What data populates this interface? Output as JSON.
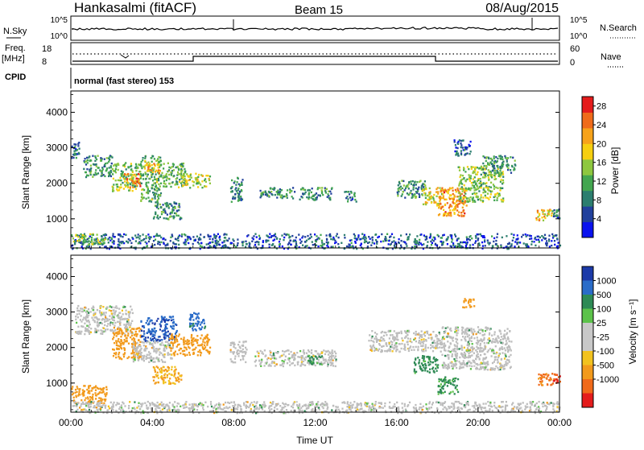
{
  "header": {
    "station": "Hankasalmi (fitACF)",
    "beam": "Beam 15",
    "date": "08/Aug/2015"
  },
  "summary_panel": {
    "nsky_label": "N.Sky",
    "nsearch_label": "N.Search",
    "nsky_axis_ticks": [
      "10^5",
      "10^0"
    ],
    "nsearch_axis_ticks": [
      "10^5",
      "10^0"
    ],
    "freq_label": "Freq.",
    "freq_unit": "[MHz]",
    "freq_ticks": [
      "18",
      "8"
    ],
    "nave_label": "Nave",
    "nave_ticks": [
      "60",
      "0"
    ],
    "cpid_label": "CPID",
    "cpid_text": "normal (fast stereo) 153"
  },
  "colors": {
    "power_scale": [
      "#0a12ee",
      "#21409c",
      "#2c7e6f",
      "#43a650",
      "#8ec73f",
      "#f6cf10",
      "#f6a21a",
      "#ef6b1a",
      "#e41c1c"
    ],
    "velocity_scale": [
      "#1c3aa8",
      "#2a6cc8",
      "#2e8a55",
      "#5cc24a",
      "#c8c8c8",
      "#c8c8c8",
      "#f2c21f",
      "#f29a1c",
      "#f06a1a",
      "#e41c1c"
    ],
    "ground_scatter": "#bdbdbd"
  },
  "chart_data": [
    {
      "type": "heatmap",
      "title": "",
      "xlabel": "Time UT",
      "ylabel": "Slant Range [km]",
      "x_ticks": [
        "00:00",
        "04:00",
        "08:00",
        "12:00",
        "16:00",
        "20:00",
        "00:00"
      ],
      "y_ticks": [
        "1000",
        "2000",
        "3000",
        "4000"
      ],
      "xlim_hours": [
        0,
        24
      ],
      "ylim_km": [
        180,
        4600
      ],
      "colorbar": {
        "label": "Power [dB]",
        "ticks": [
          "4",
          "8",
          "12",
          "16",
          "20",
          "24",
          "28"
        ],
        "range": [
          0,
          30
        ]
      },
      "regions": [
        {
          "t0": 0.0,
          "t1": 0.4,
          "r0": 2700,
          "r1": 3200,
          "value": 6
        },
        {
          "t0": 0.6,
          "t1": 2.0,
          "r0": 2200,
          "r1": 2800,
          "value": 10
        },
        {
          "t0": 2.0,
          "t1": 3.4,
          "r0": 1800,
          "r1": 2600,
          "value": 14
        },
        {
          "t0": 2.6,
          "t1": 3.4,
          "r0": 1900,
          "r1": 2300,
          "value": 24
        },
        {
          "t0": 3.4,
          "t1": 4.4,
          "r0": 1500,
          "r1": 2800,
          "value": 12
        },
        {
          "t0": 3.6,
          "t1": 4.4,
          "r0": 2300,
          "r1": 2600,
          "value": 22
        },
        {
          "t0": 4.4,
          "t1": 5.6,
          "r0": 1900,
          "r1": 2600,
          "value": 12
        },
        {
          "t0": 4.0,
          "t1": 5.4,
          "r0": 1000,
          "r1": 1500,
          "value": 10
        },
        {
          "t0": 5.4,
          "t1": 6.8,
          "r0": 1900,
          "r1": 2300,
          "value": 16
        },
        {
          "t0": 7.8,
          "t1": 8.4,
          "r0": 1500,
          "r1": 2200,
          "value": 8
        },
        {
          "t0": 9.2,
          "t1": 11.0,
          "r0": 1600,
          "r1": 1900,
          "value": 10
        },
        {
          "t0": 11.2,
          "t1": 12.8,
          "r0": 1550,
          "r1": 1900,
          "value": 10
        },
        {
          "t0": 13.4,
          "t1": 14.0,
          "r0": 1500,
          "r1": 1800,
          "value": 8
        },
        {
          "t0": 16.0,
          "t1": 17.4,
          "r0": 1600,
          "r1": 2100,
          "value": 10
        },
        {
          "t0": 17.2,
          "t1": 18.2,
          "r0": 1400,
          "r1": 1900,
          "value": 18
        },
        {
          "t0": 18.0,
          "t1": 19.4,
          "r0": 1100,
          "r1": 1900,
          "value": 22
        },
        {
          "t0": 19.0,
          "t1": 21.2,
          "r0": 1500,
          "r1": 2500,
          "value": 14
        },
        {
          "t0": 20.2,
          "t1": 21.8,
          "r0": 2300,
          "r1": 2800,
          "value": 10
        },
        {
          "t0": 18.8,
          "t1": 19.6,
          "r0": 2800,
          "r1": 3250,
          "value": 6
        },
        {
          "t0": 0.0,
          "t1": 24.0,
          "r0": 180,
          "r1": 600,
          "value": 6
        },
        {
          "t0": 0.0,
          "t1": 1.8,
          "r0": 300,
          "r1": 600,
          "value": 14
        },
        {
          "t0": 22.8,
          "t1": 23.6,
          "r0": 950,
          "r1": 1300,
          "value": 20
        },
        {
          "t0": 23.6,
          "t1": 24.0,
          "r0": 1000,
          "r1": 1300,
          "value": 8
        }
      ]
    },
    {
      "type": "heatmap",
      "title": "",
      "xlabel": "Time UT",
      "ylabel": "Slant Range [km]",
      "x_ticks": [
        "00:00",
        "04:00",
        "08:00",
        "12:00",
        "16:00",
        "20:00",
        "00:00"
      ],
      "y_ticks": [
        "1000",
        "2000",
        "3000",
        "4000"
      ],
      "xlim_hours": [
        0,
        24
      ],
      "ylim_km": [
        180,
        4600
      ],
      "colorbar": {
        "label": "Velocity [m s⁻¹]",
        "ticks": [
          "1000",
          "500",
          "100",
          "25",
          "-25",
          "-100",
          "-500",
          "-1000"
        ],
        "range": [
          -1200,
          1200
        ]
      },
      "regions": [
        {
          "t0": 0.2,
          "t1": 3.0,
          "r0": 2400,
          "r1": 3200,
          "value": 0,
          "ground": true
        },
        {
          "t0": 2.0,
          "t1": 3.4,
          "r0": 1700,
          "r1": 2600,
          "value": -300
        },
        {
          "t0": 3.4,
          "t1": 5.2,
          "r0": 2200,
          "r1": 2900,
          "value": 900
        },
        {
          "t0": 3.0,
          "t1": 5.0,
          "r0": 1600,
          "r1": 2200,
          "value": 0,
          "ground": true
        },
        {
          "t0": 4.8,
          "t1": 6.8,
          "r0": 1800,
          "r1": 2400,
          "value": -200
        },
        {
          "t0": 5.8,
          "t1": 6.6,
          "r0": 2500,
          "r1": 3000,
          "value": 700
        },
        {
          "t0": 4.0,
          "t1": 5.4,
          "r0": 1000,
          "r1": 1500,
          "value": -120
        },
        {
          "t0": 7.8,
          "t1": 8.6,
          "r0": 1600,
          "r1": 2200,
          "value": 0,
          "ground": true
        },
        {
          "t0": 9.0,
          "t1": 13.0,
          "r0": 1500,
          "r1": 1950,
          "value": 0,
          "ground": true
        },
        {
          "t0": 11.6,
          "t1": 12.4,
          "r0": 1550,
          "r1": 1800,
          "value": 120
        },
        {
          "t0": 14.6,
          "t1": 18.2,
          "r0": 1900,
          "r1": 2500,
          "value": 0,
          "ground": true
        },
        {
          "t0": 16.8,
          "t1": 18.0,
          "r0": 1300,
          "r1": 1800,
          "value": 150
        },
        {
          "t0": 18.0,
          "t1": 19.0,
          "r0": 700,
          "r1": 1200,
          "value": 120
        },
        {
          "t0": 18.2,
          "t1": 21.6,
          "r0": 1400,
          "r1": 2600,
          "value": 0,
          "ground": true
        },
        {
          "t0": 19.2,
          "t1": 19.8,
          "r0": 3150,
          "r1": 3400,
          "value": -250
        },
        {
          "t0": 0.0,
          "t1": 1.8,
          "r0": 450,
          "r1": 950,
          "value": -250
        },
        {
          "t0": 0.0,
          "t1": 24.0,
          "r0": 180,
          "r1": 500,
          "value": 0,
          "ground": true
        },
        {
          "t0": 22.8,
          "t1": 23.6,
          "r0": 950,
          "r1": 1300,
          "value": -600
        },
        {
          "t0": 23.6,
          "t1": 24.0,
          "r0": 1000,
          "r1": 1300,
          "value": -900
        }
      ]
    }
  ]
}
